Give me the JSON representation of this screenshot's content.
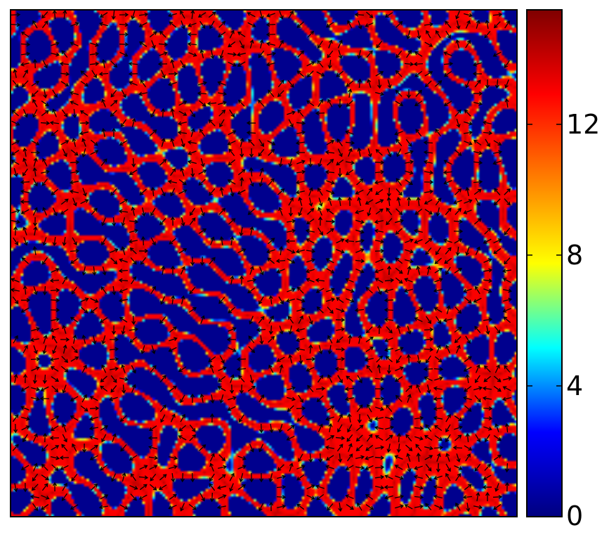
{
  "chart_data": {
    "type": "heatmap",
    "title": "",
    "xlabel": "",
    "ylabel": "",
    "field_description_visible": false,
    "overlay": "quiver",
    "colormap": {
      "name": "jet",
      "stops": [
        "#00007f",
        "#0000ff",
        "#00ffff",
        "#ffff00",
        "#ff7f00",
        "#ff0000",
        "#7f0000"
      ]
    },
    "colorbar": {
      "range": [
        0,
        15.5
      ],
      "ticks": [
        0,
        4,
        8,
        12
      ],
      "tick_labels": [
        "0",
        "4",
        "8",
        "12"
      ]
    },
    "field_levels": {
      "background": 0.3,
      "band": 13.0,
      "hotspot_peak": 15.0
    }
  }
}
